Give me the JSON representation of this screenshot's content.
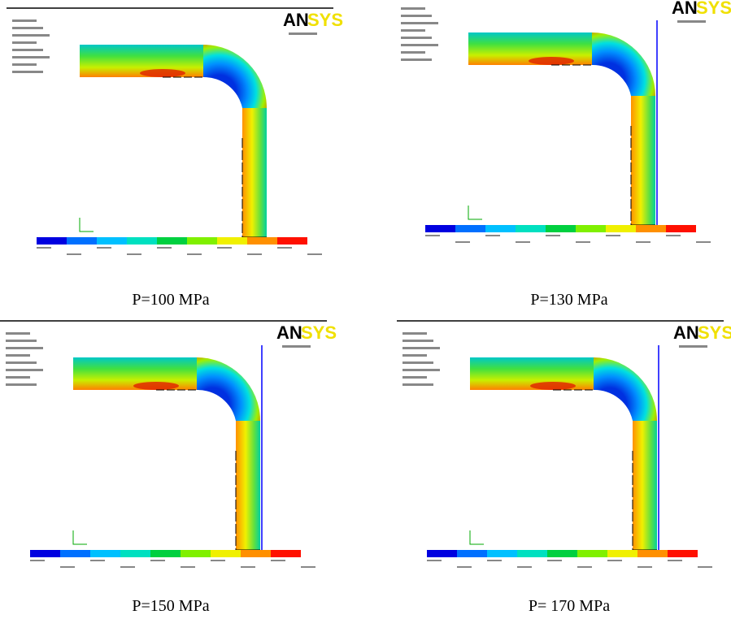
{
  "panels": [
    {
      "logo_left": "AN",
      "logo_right": "SYS",
      "caption": "P=100 MPa"
    },
    {
      "logo_left": "AN",
      "logo_right": "SYS",
      "caption": "P=130 MPa"
    },
    {
      "logo_left": "AN",
      "logo_right": "SYS",
      "caption": "P=150 MPa"
    },
    {
      "logo_left": "AN",
      "logo_right": "SYS",
      "caption": "P= 170 MPa"
    }
  ]
}
